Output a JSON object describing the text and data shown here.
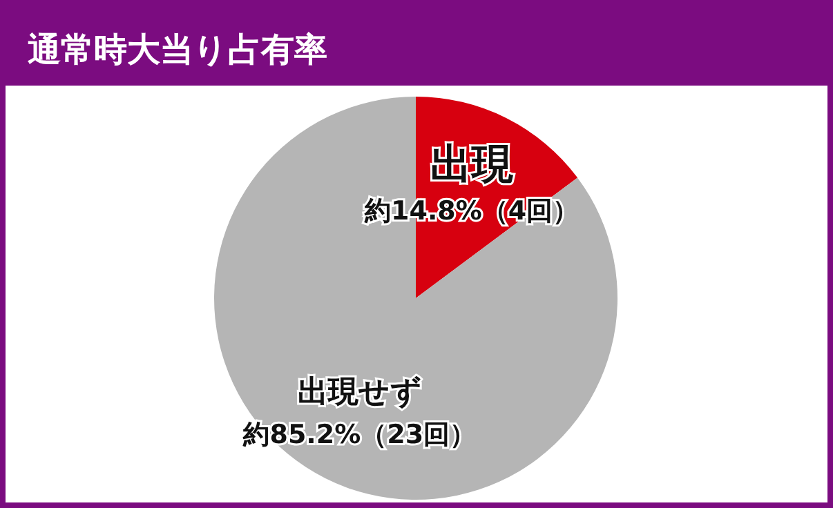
{
  "chart_data": {
    "type": "pie",
    "title": "通常時大当り占有率",
    "categories": [
      "出現",
      "出現せず"
    ],
    "values": [
      14.8,
      85.2
    ],
    "colors": [
      "#d7000f",
      "#b5b5b5"
    ],
    "value_labels": [
      "約14.8%（4回）",
      "約85.2%（23回）"
    ]
  }
}
